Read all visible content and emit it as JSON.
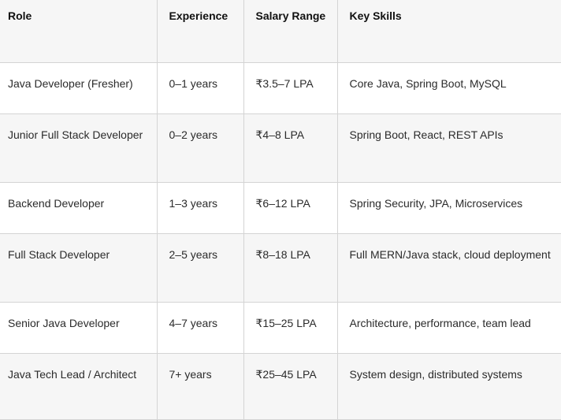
{
  "table": {
    "headers": [
      "Role",
      "Experience",
      "Salary Range",
      "Key Skills"
    ],
    "rows": [
      {
        "role": "Java Developer (Fresher)",
        "experience": "0–1 years",
        "salary": "₹3.5–7 LPA",
        "skills": "Core Java, Spring Boot, MySQL"
      },
      {
        "role": "Junior Full Stack Developer",
        "experience": "0–2 years",
        "salary": "₹4–8 LPA",
        "skills": "Spring Boot, React, REST APIs"
      },
      {
        "role": "Backend Developer",
        "experience": "1–3 years",
        "salary": "₹6–12 LPA",
        "skills": "Spring Security, JPA, Microservices"
      },
      {
        "role": "Full Stack Developer",
        "experience": "2–5 years",
        "salary": "₹8–18 LPA",
        "skills": "Full MERN/Java stack, cloud deployment"
      },
      {
        "role": "Senior Java Developer",
        "experience": "4–7 years",
        "salary": "₹15–25 LPA",
        "skills": "Architecture, performance, team lead"
      },
      {
        "role": "Java Tech Lead / Architect",
        "experience": "7+ years",
        "salary": "₹25–45 LPA",
        "skills": "System design, distributed systems"
      }
    ]
  }
}
